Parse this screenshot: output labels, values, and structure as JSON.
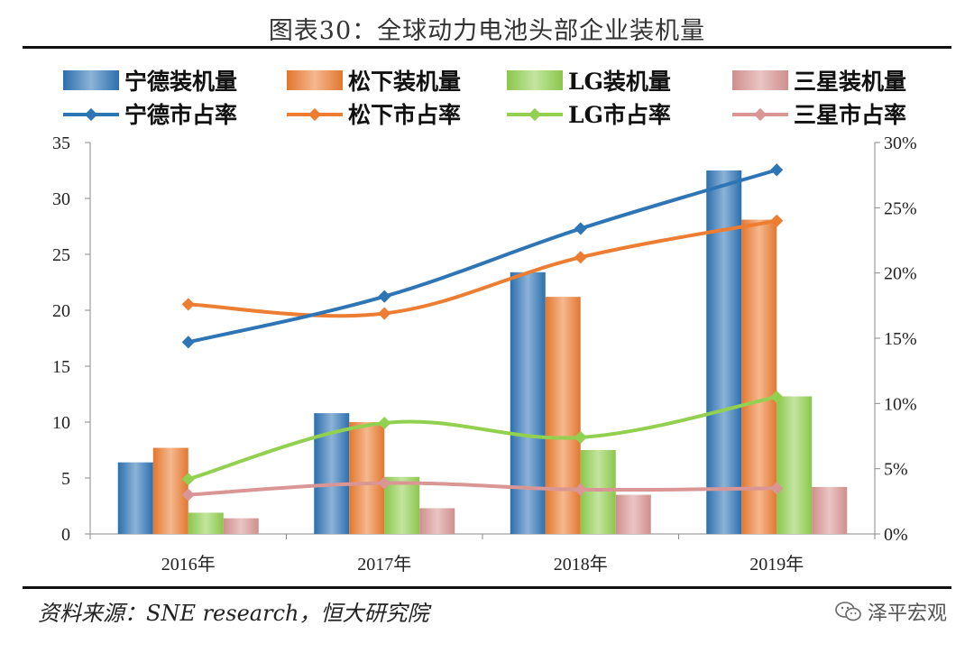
{
  "title": "图表30：全球动力电池头部企业装机量",
  "source": "资料来源：SNE research，恒大研究院",
  "watermark": "泽平宏观",
  "colors": {
    "catl": "#2E75B6",
    "panasonic": "#ED7D31",
    "lg": "#92D050",
    "samsung": "#D99694"
  },
  "chart_data": {
    "type": "bar+line",
    "categories": [
      "2016年",
      "2017年",
      "2018年",
      "2019年"
    ],
    "y_left": {
      "ylim": [
        0,
        35
      ],
      "ticks": [
        0,
        5,
        10,
        15,
        20,
        25,
        30,
        35
      ]
    },
    "y_right": {
      "ylim": [
        0,
        30
      ],
      "ticks": [
        0,
        5,
        10,
        15,
        20,
        25,
        30
      ],
      "tick_labels": [
        "0%",
        "5%",
        "10%",
        "15%",
        "20%",
        "25%",
        "30%"
      ]
    },
    "legend_position": "top",
    "bar_series": [
      {
        "name": "宁德装机量",
        "color_key": "catl",
        "values": [
          6.4,
          10.8,
          23.4,
          32.5
        ]
      },
      {
        "name": "松下装机量",
        "color_key": "panasonic",
        "values": [
          7.7,
          10.0,
          21.2,
          28.1
        ]
      },
      {
        "name": "LG装机量",
        "color_key": "lg",
        "values": [
          1.9,
          5.1,
          7.5,
          12.3
        ]
      },
      {
        "name": "三星装机量",
        "color_key": "samsung",
        "values": [
          1.4,
          2.3,
          3.5,
          4.2
        ]
      }
    ],
    "line_series": [
      {
        "name": "宁德市占率",
        "color_key": "catl",
        "values": [
          14.7,
          18.2,
          23.4,
          27.9
        ]
      },
      {
        "name": "松下市占率",
        "color_key": "panasonic",
        "values": [
          17.6,
          16.9,
          21.2,
          24.0
        ]
      },
      {
        "name": "LG市占率",
        "color_key": "lg",
        "values": [
          4.2,
          8.5,
          7.4,
          10.5
        ]
      },
      {
        "name": "三星市占率",
        "color_key": "samsung",
        "values": [
          3.0,
          3.9,
          3.4,
          3.5
        ]
      }
    ]
  }
}
